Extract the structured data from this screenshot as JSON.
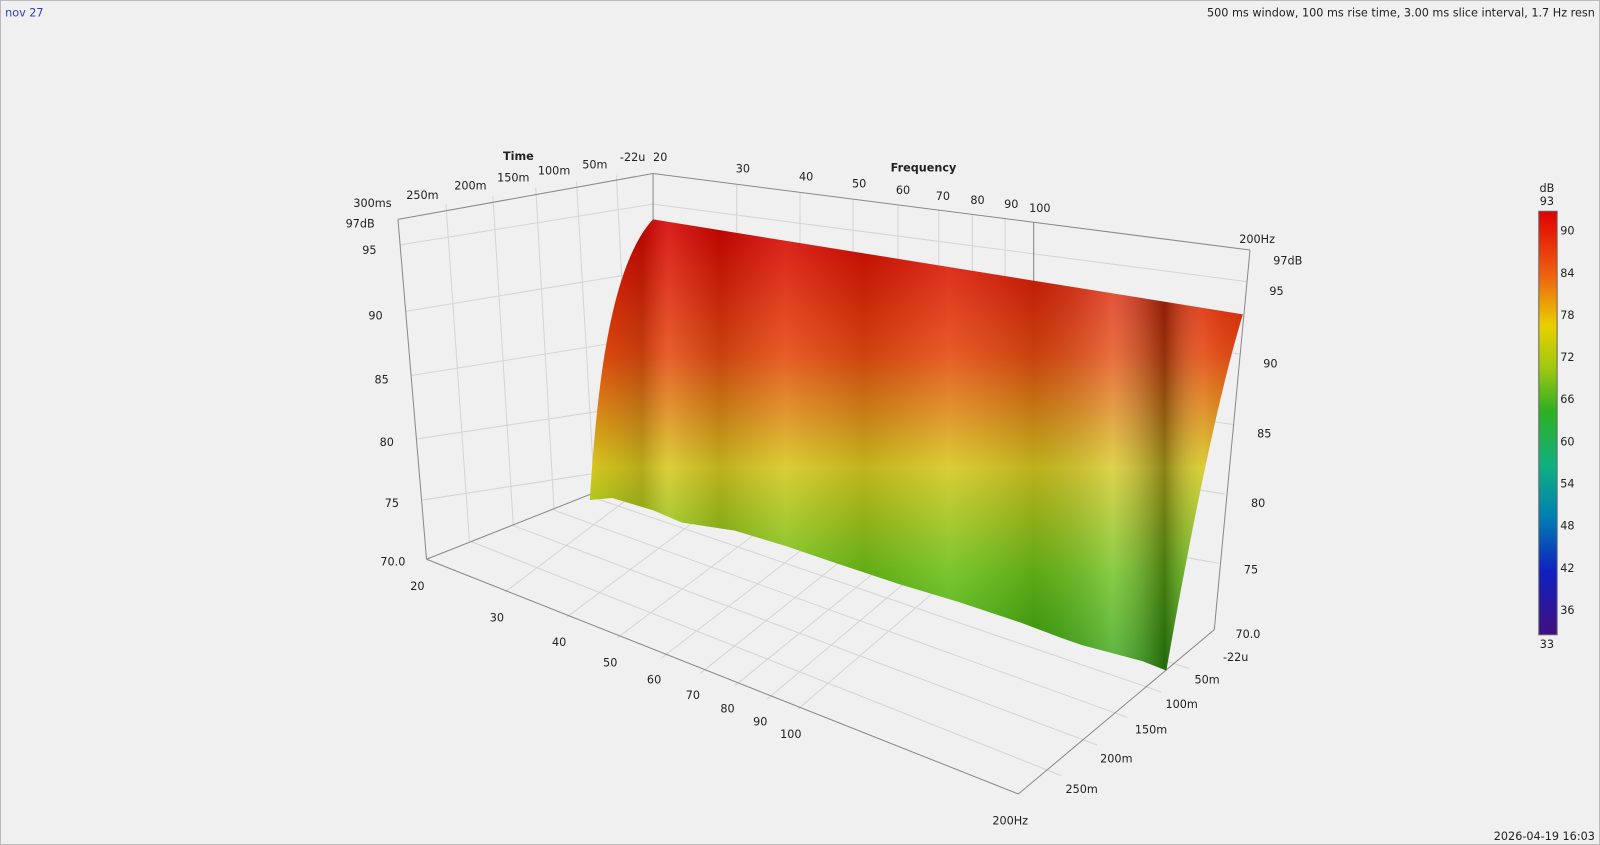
{
  "header": {
    "left": "nov 27",
    "right": "500 ms window, 100 ms rise time, 3.00 ms slice interval, 1.7 Hz resn"
  },
  "footer": "2026-04-19 16:03",
  "axes": {
    "time": {
      "title": "Time",
      "back_labels": [
        "300ms",
        "250m",
        "200m",
        "150m",
        "100m",
        "50m",
        "-22u"
      ],
      "front_labels": [
        "-22u",
        "50m",
        "100m",
        "150m",
        "200m",
        "250m"
      ]
    },
    "frequency": {
      "title": "Frequency",
      "back_labels": [
        "20",
        "30",
        "40",
        "50",
        "60",
        "70",
        "80",
        "90",
        "100",
        "200Hz"
      ],
      "front_labels": [
        "20",
        "30",
        "40",
        "50",
        "60",
        "70",
        "80",
        "90",
        "100",
        "200Hz"
      ]
    },
    "level_left": [
      "97dB",
      "95",
      "90",
      "85",
      "80",
      "75",
      "70.0"
    ],
    "level_right": [
      "97dB",
      "95",
      "90",
      "85",
      "80",
      "75",
      "70.0"
    ]
  },
  "colorbar": {
    "title": "dB",
    "max": "93",
    "ticks": [
      "90",
      "84",
      "78",
      "72",
      "66",
      "60",
      "54",
      "48",
      "42",
      "36"
    ],
    "min": "33"
  }
}
